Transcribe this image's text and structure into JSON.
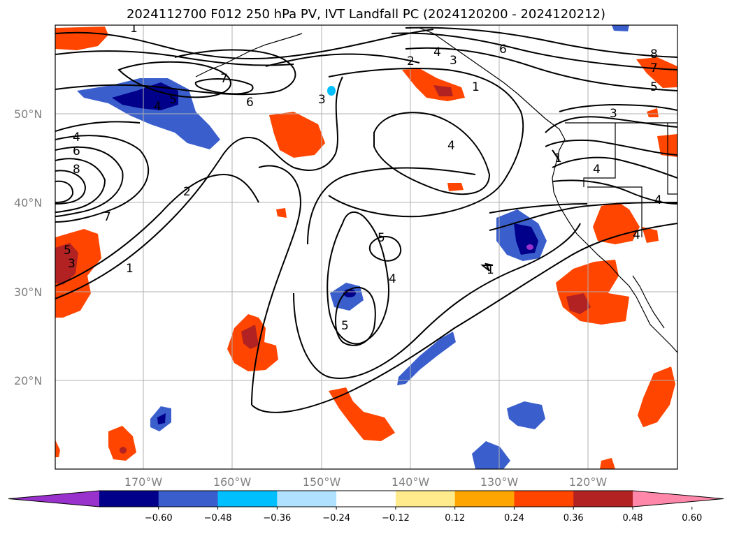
{
  "title": "2024112700 F012 250 hPa PV, IVT Landfall PC (2024120200 - 2024120212)",
  "lat_labels": [
    "50°N",
    "40°N",
    "30°N",
    "20°N"
  ],
  "lon_labels": [
    "170°W",
    "160°W",
    "150°W",
    "140°W",
    "130°W",
    "120°W"
  ],
  "colorbar": {
    "ticks": [
      "−0.60",
      "−0.48",
      "−0.36",
      "−0.24",
      "−0.12",
      "0.12",
      "0.24",
      "0.36",
      "0.48",
      "0.60"
    ],
    "colors": [
      "#9932cc",
      "#00008b",
      "#3a5fcd",
      "#00bfff",
      "#b0e2ff",
      "#ffffff",
      "#ffeb8c",
      "#ffa500",
      "#ff4500",
      "#b22222",
      "#ff88aa"
    ]
  },
  "contour_labels": [
    "1",
    "7",
    "6",
    "5",
    "4",
    "4",
    "6",
    "8",
    "7",
    "5",
    "3",
    "2",
    "1",
    "3",
    "2",
    "4",
    "3",
    "1",
    "4",
    "6",
    "8",
    "7",
    "5",
    "3",
    "1",
    "4",
    "4",
    "4",
    "5",
    "4",
    "5",
    "1"
  ],
  "icons": [
    "coastline",
    "state-borders"
  ]
}
